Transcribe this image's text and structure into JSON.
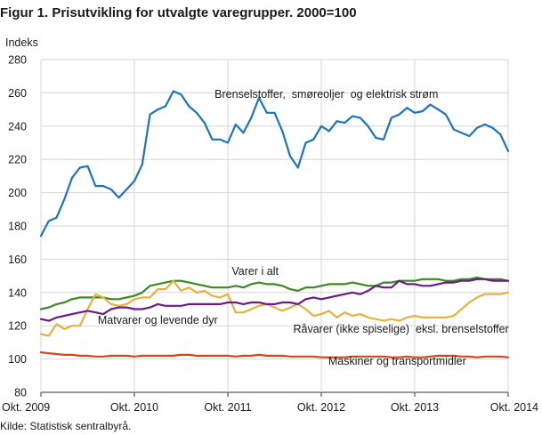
{
  "figure": {
    "title": "Figur 1. Prisutvikling for utvalgte varegrupper. 2000=100",
    "source": "Kilde: Statistisk sentralbyrå."
  },
  "chart_data": {
    "type": "line",
    "title": "Figur 1. Prisutvikling for utvalgte varegrupper. 2000=100",
    "ylabel": "Indeks",
    "xlabel": "",
    "ylim": [
      80,
      280
    ],
    "yticks": [
      80,
      100,
      120,
      140,
      160,
      180,
      200,
      220,
      240,
      260,
      280
    ],
    "xlim": [
      0,
      60
    ],
    "xticks": [
      {
        "x": 0,
        "label": "Okt. 2009"
      },
      {
        "x": 12,
        "label": "Okt. 2010"
      },
      {
        "x": 24,
        "label": "Okt. 2011"
      },
      {
        "x": 36,
        "label": "Okt. 2012"
      },
      {
        "x": 48,
        "label": "Okt. 2013"
      },
      {
        "x": 60,
        "label": "Okt. 2014"
      }
    ],
    "grid": true,
    "legend": "inline labels",
    "series": [
      {
        "name": "Brenselstoffer,  smøreoljer  og elektrisk strøm",
        "color": "#1a74c4",
        "label_at": [
          22.3,
          257
        ],
        "values": [
          174,
          183,
          185,
          196,
          209,
          215,
          216,
          204,
          204,
          202,
          197,
          202,
          207,
          217,
          247,
          250,
          252,
          261,
          259,
          252,
          248,
          242,
          232,
          232,
          230,
          241,
          236,
          245,
          257,
          248,
          248,
          237,
          222,
          215,
          230,
          232,
          240,
          237,
          243,
          242,
          246,
          245,
          240,
          233,
          232,
          245,
          247,
          251,
          248,
          249,
          253,
          250,
          247,
          238,
          236,
          234,
          239,
          241,
          239,
          235,
          225
        ]
      },
      {
        "name": "Varer i alt",
        "color": "#3a8a1f",
        "label_at": [
          24.5,
          150.5
        ],
        "values": [
          130,
          131,
          133,
          134,
          136,
          137,
          137,
          137,
          137,
          136,
          136,
          137,
          138,
          140,
          144,
          145,
          146,
          147,
          147,
          146,
          145,
          144,
          143,
          143,
          143,
          144,
          143,
          145,
          146,
          145,
          145,
          144,
          142,
          141,
          143,
          143,
          144,
          145,
          145,
          145,
          146,
          145,
          144,
          144,
          146,
          146,
          147,
          147,
          147,
          148,
          148,
          148,
          147,
          147,
          148,
          148,
          149,
          148,
          148,
          148,
          147
        ]
      },
      {
        "name": "Matvarer og levende dyr",
        "color": "#e8b23a",
        "label_at": [
          7.3,
          121.3
        ],
        "values": [
          115,
          114,
          121,
          118,
          120,
          120,
          130,
          139,
          137,
          133,
          132,
          133,
          136,
          137,
          137,
          142,
          142,
          147,
          141,
          143,
          140,
          141,
          138,
          137,
          139,
          128,
          128,
          130,
          132,
          133,
          131,
          129,
          131,
          133,
          130,
          126,
          127,
          129,
          125,
          128,
          126,
          127,
          125,
          124,
          123,
          124,
          123,
          125,
          126,
          125,
          125,
          125,
          125,
          126,
          130,
          134,
          137,
          139,
          139,
          139,
          140
        ]
      },
      {
        "name": "Råvarer (ikke spiselige)  eksl. brenselstoffer",
        "color": "#6b1a8a",
        "label_at": [
          32.4,
          115.8
        ],
        "values": [
          124,
          123,
          125,
          126,
          127,
          128,
          129,
          128,
          127,
          130,
          131,
          131,
          130,
          130,
          131,
          133,
          132,
          132,
          132,
          133,
          133,
          133,
          133,
          133,
          134,
          134,
          133,
          134,
          134,
          133,
          133,
          134,
          134,
          133,
          136,
          137,
          136,
          137,
          138,
          139,
          140,
          139,
          141,
          144,
          143,
          143,
          147,
          145,
          145,
          144,
          144,
          145,
          146,
          146,
          147,
          147,
          148,
          148,
          147,
          147,
          147
        ]
      },
      {
        "name": "Maskiner og transportmidler",
        "color": "#d14a1a",
        "label_at": [
          36.9,
          96.5
        ],
        "values": [
          104,
          103.5,
          103,
          102.5,
          102.5,
          102,
          102,
          101.5,
          101.5,
          102,
          102,
          102,
          101.5,
          102,
          102,
          102,
          102,
          102,
          102.5,
          102.5,
          102,
          102,
          102,
          102,
          102,
          101.5,
          102,
          102,
          102.5,
          102,
          102,
          102,
          101.5,
          101.5,
          101.5,
          101.5,
          101,
          101,
          101,
          101,
          101.5,
          101.5,
          101.5,
          101.5,
          101.5,
          101,
          101,
          101.5,
          101,
          101,
          101.5,
          102,
          102,
          102,
          101.5,
          101.5,
          101,
          101.5,
          101.5,
          101.5,
          101
        ]
      }
    ]
  }
}
